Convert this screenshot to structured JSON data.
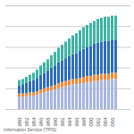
{
  "chart_data": {
    "type": "bar",
    "stacked": true,
    "grid": true,
    "tick_labels": "x",
    "caption": "Information Service (TPIS)",
    "categories": [
      "1980",
      null,
      "1982",
      null,
      "1984",
      null,
      "1986",
      null,
      "1988",
      null,
      "1990",
      null,
      "1992",
      null,
      "1994",
      null,
      "1996",
      null,
      "1998",
      null,
      "2000",
      null,
      "2002",
      null,
      "2004",
      null,
      "2006",
      null
    ],
    "series": [
      {
        "color": "#a9b6de",
        "values": [
          12,
          12,
          12,
          13,
          13,
          14,
          15,
          16,
          17,
          18,
          19,
          20,
          21,
          22,
          23,
          24,
          24,
          25,
          25,
          26,
          26,
          27,
          27,
          28,
          28,
          28,
          29,
          29
        ]
      },
      {
        "color": "#f08a3c",
        "values": [
          3,
          3,
          3,
          3,
          3,
          3,
          4,
          4,
          4,
          4,
          4,
          5,
          5,
          5,
          5,
          5,
          5,
          5,
          6,
          6,
          6,
          6,
          6,
          6,
          6,
          6,
          6,
          6
        ]
      },
      {
        "color": "#2e6db4",
        "values": [
          8,
          9,
          10,
          11,
          12,
          13,
          14,
          15,
          16,
          18,
          19,
          20,
          21,
          22,
          23,
          24,
          25,
          26,
          27,
          28,
          29,
          30,
          31,
          31,
          32,
          32,
          32,
          32
        ]
      },
      {
        "color": "#3fb3a4",
        "values": [
          5,
          5,
          6,
          6,
          7,
          8,
          9,
          10,
          11,
          12,
          13,
          14,
          15,
          16,
          17,
          18,
          19,
          20,
          21,
          21,
          22,
          22,
          23,
          23,
          23,
          23,
          23,
          23
        ]
      }
    ],
    "ylim": [
      0,
      100
    ],
    "yticks": [
      0,
      20,
      40,
      60,
      80,
      100
    ]
  }
}
